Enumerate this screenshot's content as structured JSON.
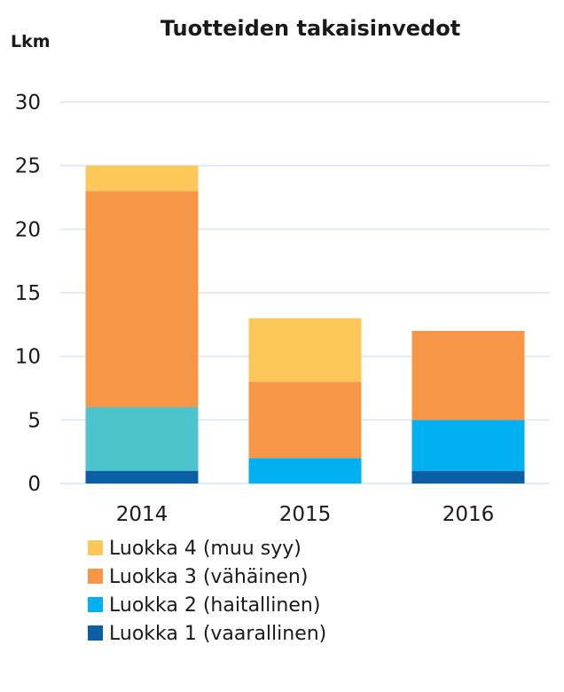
{
  "chart_data": {
    "type": "bar",
    "stacked": true,
    "title": "Tuotteiden takaisinvedot",
    "ylabel": "Lkm",
    "xlabel": "",
    "ylim": [
      0,
      30
    ],
    "yticks": [
      0,
      5,
      10,
      15,
      20,
      25,
      30
    ],
    "grid": true,
    "legend_position": "bottom",
    "categories": [
      "2014",
      "2015",
      "2016"
    ],
    "series": [
      {
        "name": "Luokka 1 (vaarallinen)",
        "values": [
          1,
          0,
          1
        ],
        "color": "#0b5fa5"
      },
      {
        "name": "Luokka 2 (haitallinen)",
        "values": [
          5,
          2,
          4
        ],
        "color": "#00b0f0",
        "point_colors": [
          "#4bc4cc",
          "#00b0f0",
          "#00b0f0"
        ]
      },
      {
        "name": "Luokka 3 (vähäinen)",
        "values": [
          17,
          6,
          7
        ],
        "color": "#f79646"
      },
      {
        "name": "Luokka 4 (muu syy)",
        "values": [
          2,
          5,
          0
        ],
        "color": "#fdc75a"
      }
    ],
    "legend_order": [
      3,
      2,
      1,
      0
    ],
    "gridline_color": "#dcebf7"
  }
}
